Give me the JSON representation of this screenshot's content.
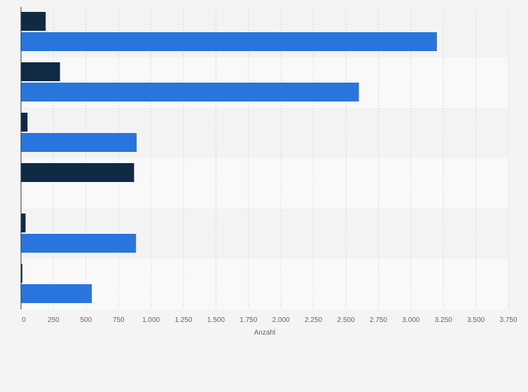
{
  "chart_data": {
    "type": "bar",
    "orientation": "horizontal",
    "categories": [
      "",
      "",
      "",
      "",
      "",
      ""
    ],
    "series": [
      {
        "color": "#0f2a44",
        "values": [
          190,
          300,
          50,
          870,
          35,
          10
        ]
      },
      {
        "color": "#2876dd",
        "values": [
          3200,
          2600,
          890,
          0,
          885,
          545
        ]
      }
    ],
    "xlabel": "Anzahl",
    "xlim": [
      0,
      3750
    ],
    "xticks": [
      0,
      250,
      500,
      750,
      1000,
      1250,
      1500,
      1750,
      2000,
      2250,
      2500,
      2750,
      3000,
      3250,
      3500,
      3750
    ],
    "xtick_labels": [
      "0",
      "250",
      "500",
      "750",
      "1.000",
      "1.250",
      "1.500",
      "1.750",
      "2.000",
      "2.250",
      "2.500",
      "2.750",
      "3.000",
      "3.250",
      "3.500",
      "3.750"
    ],
    "grid": true,
    "legend": "none"
  }
}
